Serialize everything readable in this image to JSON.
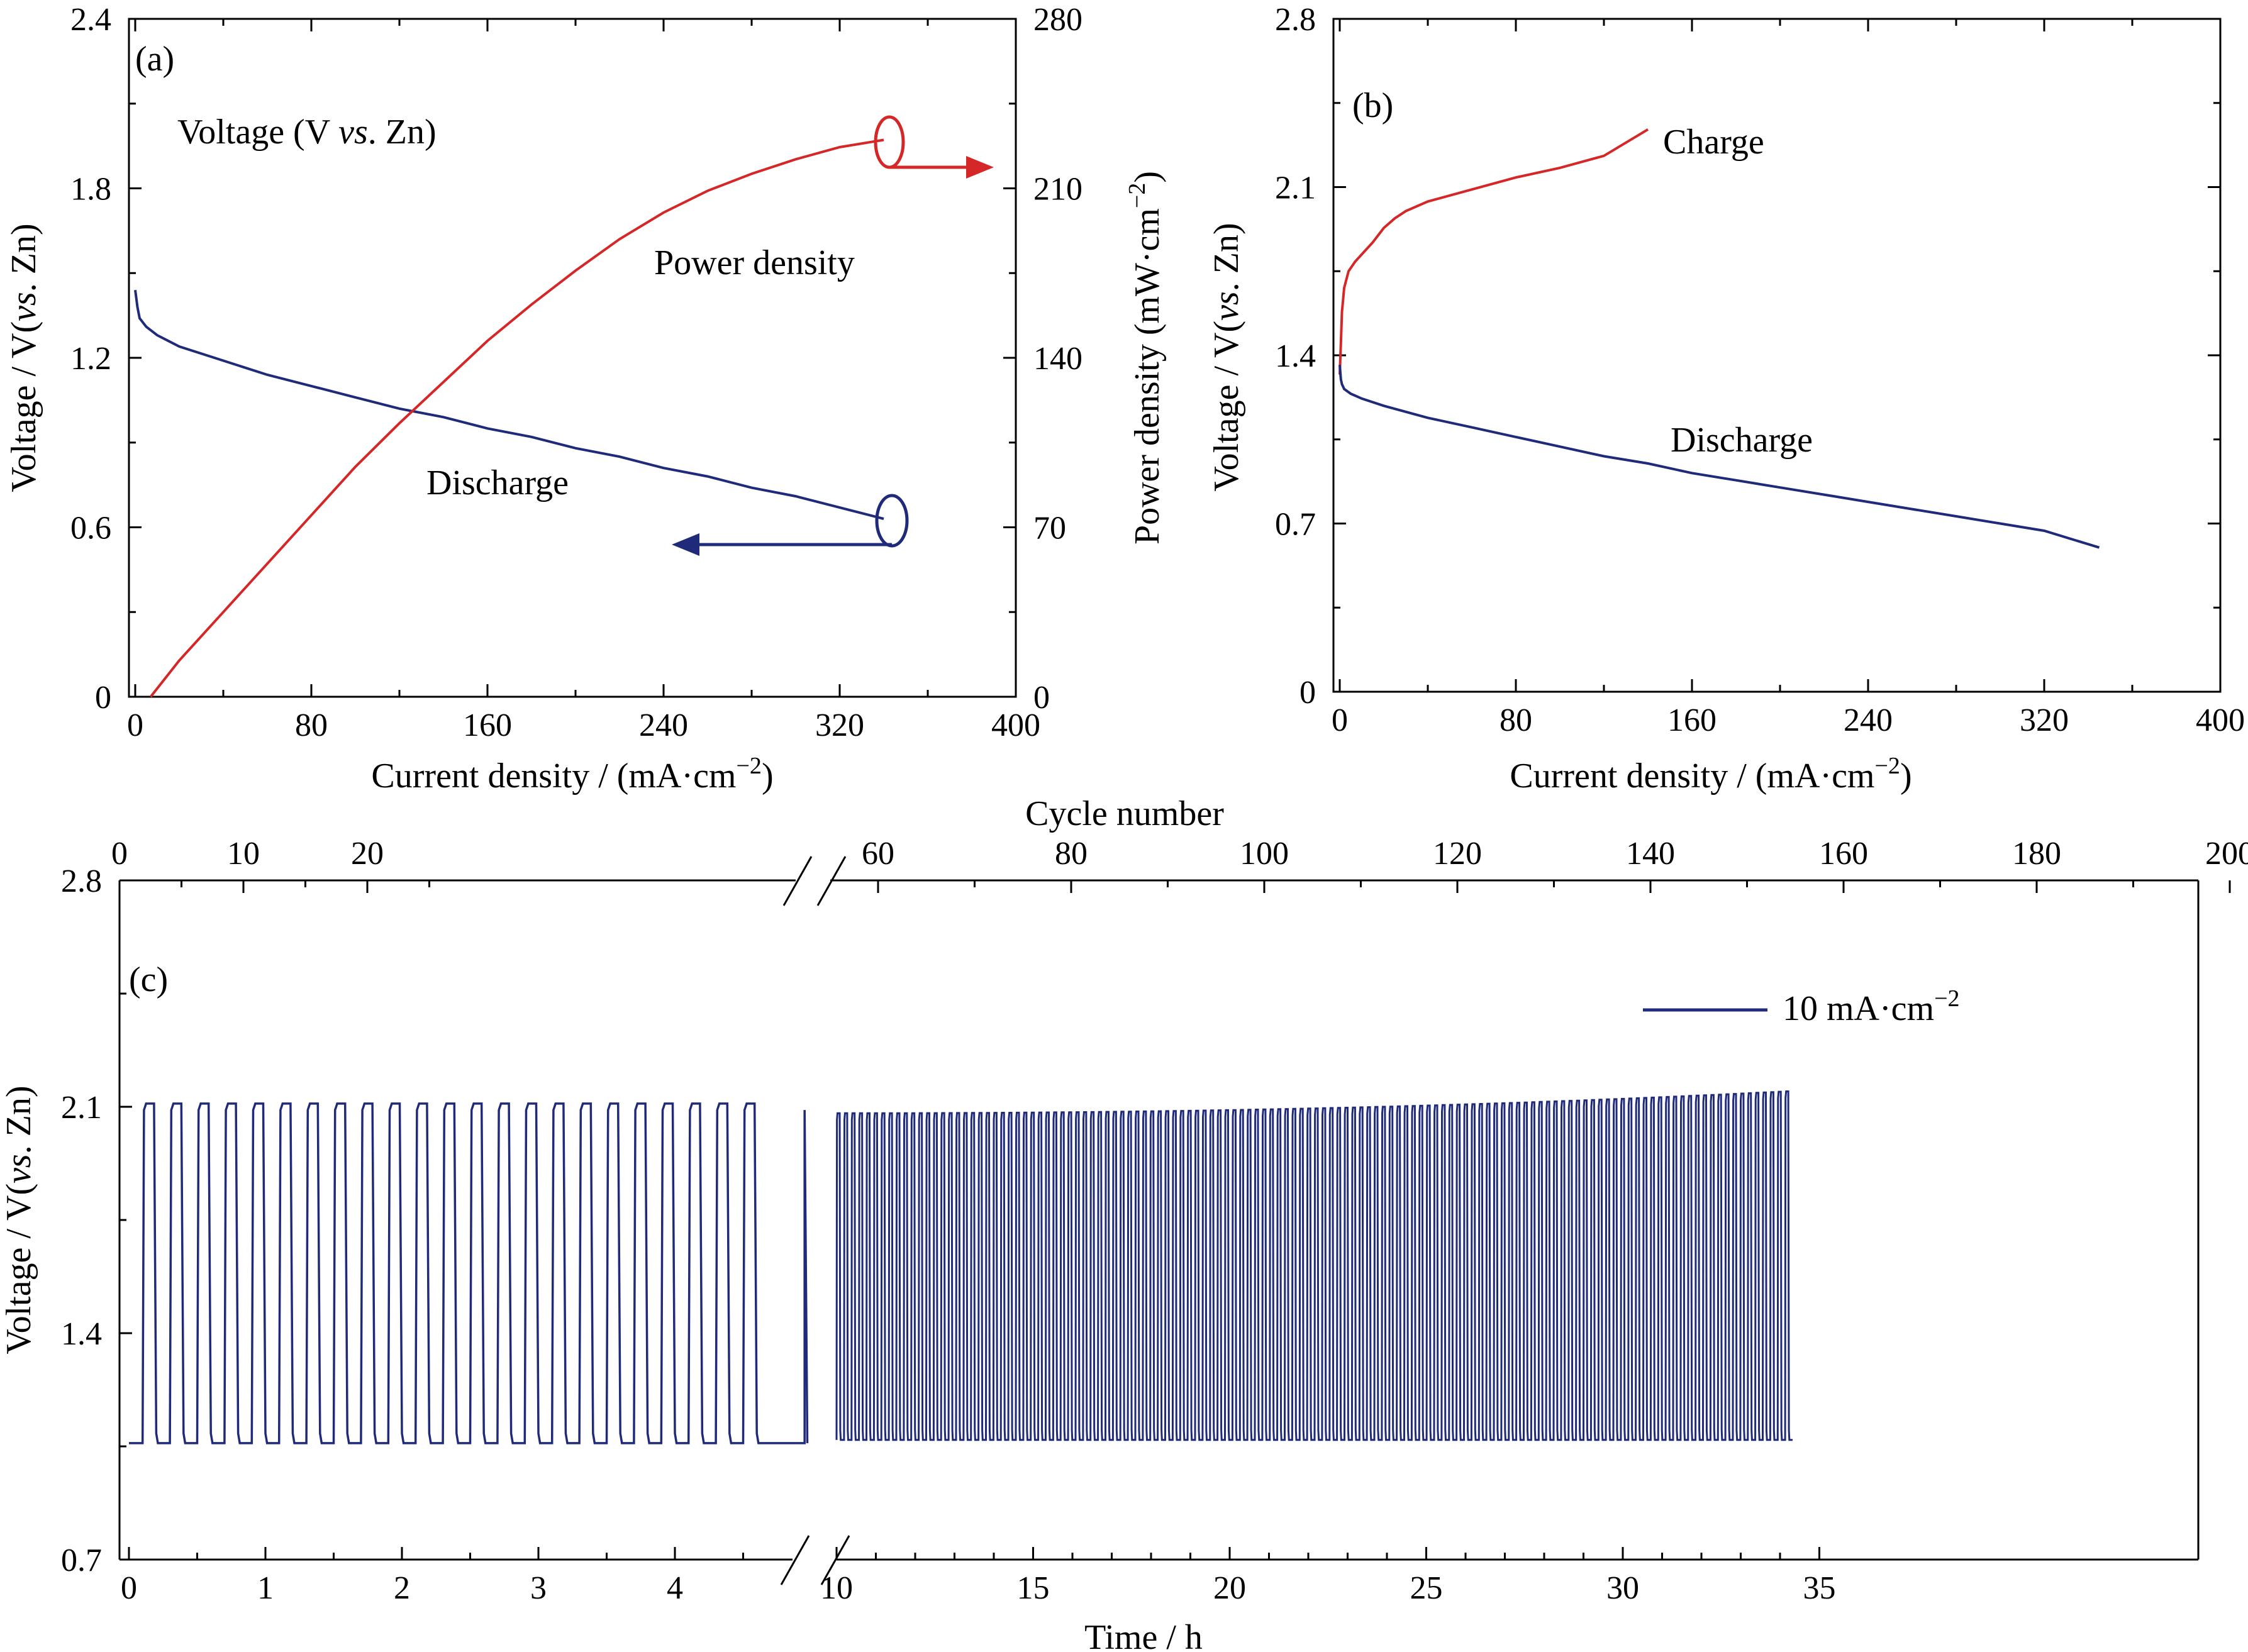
{
  "colors": {
    "discharge": "#1f2a7a",
    "charge": "#d62728",
    "axes": "#000000"
  },
  "panel_a": {
    "label": "(a)",
    "annotation_voltage": "Voltage (V vs. Zn)",
    "annotation_power": "Power density",
    "annotation_discharge": "Discharge",
    "xlabel": "Current density / (mA·cm⁻²)",
    "ylabel": "Voltage / V(vs. Zn)",
    "y2label": "Power density (mW·cm⁻²)"
  },
  "panel_b": {
    "label": "(b)",
    "annotation_charge": "Charge",
    "annotation_discharge": "Discharge",
    "xlabel": "Current density / (mA·cm⁻²)",
    "ylabel": "Voltage / V(vs. Zn)"
  },
  "panel_c": {
    "label": "(c)",
    "legend": "10 mA·cm⁻²",
    "xlabel": "Time / h",
    "x2label": "Cycle number",
    "ylabel": "Voltage / V(vs. Zn)"
  },
  "chart_data": [
    {
      "id": "a",
      "type": "line",
      "xlim": [
        0,
        400
      ],
      "ylim": [
        0,
        2.4
      ],
      "y2lim": [
        0,
        280
      ],
      "xticks": [
        "0",
        "80",
        "160",
        "240",
        "320",
        "400"
      ],
      "yticks": [
        "0",
        "0.6",
        "1.2",
        "1.8",
        "2.4"
      ],
      "y2ticks": [
        "0",
        "70",
        "140",
        "210",
        "280"
      ],
      "series": [
        {
          "name": "Discharge",
          "axis": "left",
          "x": [
            0,
            1,
            2,
            5,
            10,
            20,
            40,
            60,
            80,
            100,
            120,
            140,
            160,
            180,
            200,
            220,
            240,
            260,
            280,
            300,
            320,
            340
          ],
          "y": [
            1.44,
            1.38,
            1.34,
            1.31,
            1.28,
            1.24,
            1.19,
            1.14,
            1.1,
            1.06,
            1.02,
            0.99,
            0.95,
            0.92,
            0.88,
            0.85,
            0.81,
            0.78,
            0.74,
            0.71,
            0.67,
            0.63
          ]
        },
        {
          "name": "Power density",
          "axis": "right",
          "x": [
            7,
            20,
            40,
            60,
            80,
            100,
            120,
            140,
            160,
            180,
            200,
            220,
            240,
            260,
            280,
            300,
            320,
            340
          ],
          "y": [
            0,
            15,
            35,
            55,
            75,
            95,
            113,
            130,
            147,
            162,
            176,
            189,
            200,
            209,
            216,
            222,
            227,
            230
          ]
        }
      ]
    },
    {
      "id": "b",
      "type": "line",
      "xlim": [
        0,
        400
      ],
      "ylim": [
        0,
        2.8
      ],
      "xticks": [
        "0",
        "80",
        "160",
        "240",
        "320",
        "400"
      ],
      "yticks": [
        "0",
        "0.7",
        "1.4",
        "2.1",
        "2.8"
      ],
      "series": [
        {
          "name": "Charge",
          "x": [
            0,
            0.5,
            1,
            2,
            4,
            7,
            10,
            15,
            20,
            25,
            30,
            40,
            60,
            80,
            100,
            120,
            140
          ],
          "y": [
            1.32,
            1.45,
            1.58,
            1.68,
            1.75,
            1.79,
            1.82,
            1.87,
            1.93,
            1.97,
            2.0,
            2.04,
            2.09,
            2.14,
            2.18,
            2.23,
            2.34
          ]
        },
        {
          "name": "Discharge",
          "x": [
            0,
            0.5,
            1,
            2,
            5,
            10,
            20,
            40,
            60,
            80,
            100,
            120,
            140,
            160,
            180,
            200,
            220,
            240,
            260,
            280,
            300,
            320,
            345
          ],
          "y": [
            1.36,
            1.3,
            1.28,
            1.26,
            1.24,
            1.22,
            1.19,
            1.14,
            1.1,
            1.06,
            1.02,
            0.98,
            0.95,
            0.91,
            0.88,
            0.85,
            0.82,
            0.79,
            0.76,
            0.73,
            0.7,
            0.67,
            0.6
          ]
        }
      ]
    },
    {
      "id": "c",
      "type": "line",
      "ylim": [
        0.7,
        2.8
      ],
      "yticks": [
        "0.7",
        "1.4",
        "2.1",
        "2.8"
      ],
      "xticks_left": [
        "0",
        "1",
        "2",
        "3",
        "4"
      ],
      "xticks_right": [
        "10",
        "15",
        "20",
        "25",
        "30",
        "35"
      ],
      "x2ticks_left": [
        "0",
        "10",
        "20"
      ],
      "x2ticks_right": [
        "60",
        "80",
        "100",
        "120",
        "140",
        "160",
        "180",
        "200"
      ],
      "axis_break": {
        "bottom": [
          4.85,
          10
        ],
        "top": [
          27,
          55
        ]
      },
      "series": [
        {
          "name": "10 mA·cm⁻²",
          "segments": [
            {
              "t_start": 0.1,
              "t_end": 4.82,
              "period": 0.2,
              "charge_v": 2.11,
              "discharge_v": 1.06
            },
            {
              "t_start": 10.0,
              "t_end": 34.5,
              "period": 0.19,
              "charge_v_start": 2.08,
              "charge_v_end": 2.15,
              "discharge_v": 1.07
            }
          ]
        }
      ]
    }
  ]
}
